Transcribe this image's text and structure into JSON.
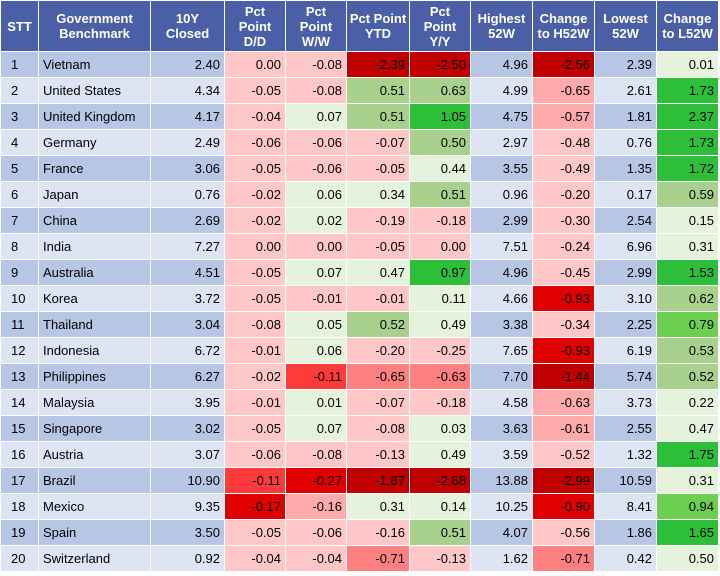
{
  "columns": [
    "STT",
    "Government Benchmark",
    "10Y Closed",
    "Pct Point D/D",
    "Pct Point W/W",
    "Pct Point YTD",
    "Pct Point Y/Y",
    "Highest 52W",
    "Change to H52W",
    "Lowest 52W",
    "Change to L52W"
  ],
  "colors": {
    "header_bg": "#4a5fa5",
    "row_odd": "#b8c6e6",
    "row_even": "#dde4f3",
    "red_1": "#ffc7c7",
    "red_2": "#ffabab",
    "red_3": "#ff8080",
    "red_4": "#ff3a3a",
    "red_5": "#e00000",
    "red_6": "#c00000",
    "green_1": "#e6f3dc",
    "green_2": "#c5e0b4",
    "green_3": "#a9d18e",
    "green_4": "#6ccf4f",
    "green_5": "#2ebf3a"
  },
  "rows": [
    {
      "stt": "1",
      "name": "Vietnam",
      "closed": "2.40",
      "dd": "0.00",
      "ww": "-0.08",
      "ytd": "-2.39",
      "yy": "-2.50",
      "h52": "4.96",
      "ch52": "-2.56",
      "l52": "2.39",
      "cl52": "0.01",
      "c": {
        "dd": "red_1",
        "ww": "red_1",
        "ytd": "red_6",
        "yy": "red_6",
        "ch52": "red_6",
        "cl52": "green_1"
      }
    },
    {
      "stt": "2",
      "name": "United States",
      "closed": "4.34",
      "dd": "-0.05",
      "ww": "-0.08",
      "ytd": "0.51",
      "yy": "0.63",
      "h52": "4.99",
      "ch52": "-0.65",
      "l52": "2.61",
      "cl52": "1.73",
      "c": {
        "dd": "red_1",
        "ww": "red_1",
        "ytd": "green_3",
        "yy": "green_3",
        "ch52": "red_2",
        "cl52": "green_5"
      }
    },
    {
      "stt": "3",
      "name": "United Kingdom",
      "closed": "4.17",
      "dd": "-0.04",
      "ww": "0.07",
      "ytd": "0.51",
      "yy": "1.05",
      "h52": "4.75",
      "ch52": "-0.57",
      "l52": "1.81",
      "cl52": "2.37",
      "c": {
        "dd": "red_1",
        "ww": "green_1",
        "ytd": "green_3",
        "yy": "green_5",
        "ch52": "red_2",
        "cl52": "green_5"
      }
    },
    {
      "stt": "4",
      "name": "Germany",
      "closed": "2.49",
      "dd": "-0.06",
      "ww": "-0.06",
      "ytd": "-0.07",
      "yy": "0.50",
      "h52": "2.97",
      "ch52": "-0.48",
      "l52": "0.76",
      "cl52": "1.73",
      "c": {
        "dd": "red_1",
        "ww": "red_1",
        "ytd": "red_1",
        "yy": "green_3",
        "ch52": "red_1",
        "cl52": "green_5"
      }
    },
    {
      "stt": "5",
      "name": "France",
      "closed": "3.06",
      "dd": "-0.05",
      "ww": "-0.06",
      "ytd": "-0.05",
      "yy": "0.44",
      "h52": "3.55",
      "ch52": "-0.49",
      "l52": "1.35",
      "cl52": "1.72",
      "c": {
        "dd": "red_1",
        "ww": "red_1",
        "ytd": "red_1",
        "yy": "green_1",
        "ch52": "red_1",
        "cl52": "green_5"
      }
    },
    {
      "stt": "6",
      "name": "Japan",
      "closed": "0.76",
      "dd": "-0.02",
      "ww": "0.06",
      "ytd": "0.34",
      "yy": "0.51",
      "h52": "0.96",
      "ch52": "-0.20",
      "l52": "0.17",
      "cl52": "0.59",
      "c": {
        "dd": "red_1",
        "ww": "green_1",
        "ytd": "green_1",
        "yy": "green_3",
        "ch52": "red_1",
        "cl52": "green_3"
      }
    },
    {
      "stt": "7",
      "name": "China",
      "closed": "2.69",
      "dd": "-0.02",
      "ww": "0.02",
      "ytd": "-0.19",
      "yy": "-0.18",
      "h52": "2.99",
      "ch52": "-0.30",
      "l52": "2.54",
      "cl52": "0.15",
      "c": {
        "dd": "red_1",
        "ww": "green_1",
        "ytd": "red_1",
        "yy": "red_1",
        "ch52": "red_1",
        "cl52": "green_1"
      }
    },
    {
      "stt": "8",
      "name": "India",
      "closed": "7.27",
      "dd": "0.00",
      "ww": "0.00",
      "ytd": "-0.05",
      "yy": "0.00",
      "h52": "7.51",
      "ch52": "-0.24",
      "l52": "6.96",
      "cl52": "0.31",
      "c": {
        "dd": "red_1",
        "ww": "red_1",
        "ytd": "red_1",
        "yy": "red_1",
        "ch52": "red_1",
        "cl52": "green_1"
      }
    },
    {
      "stt": "9",
      "name": "Australia",
      "closed": "4.51",
      "dd": "-0.05",
      "ww": "0.07",
      "ytd": "0.47",
      "yy": "0.97",
      "h52": "4.96",
      "ch52": "-0.45",
      "l52": "2.99",
      "cl52": "1.53",
      "c": {
        "dd": "red_1",
        "ww": "green_1",
        "ytd": "green_1",
        "yy": "green_5",
        "ch52": "red_1",
        "cl52": "green_5"
      }
    },
    {
      "stt": "10",
      "name": "Korea",
      "closed": "3.72",
      "dd": "-0.05",
      "ww": "-0.01",
      "ytd": "-0.01",
      "yy": "0.11",
      "h52": "4.66",
      "ch52": "-0.93",
      "l52": "3.10",
      "cl52": "0.62",
      "c": {
        "dd": "red_1",
        "ww": "red_1",
        "ytd": "red_1",
        "yy": "green_1",
        "ch52": "red_5",
        "cl52": "green_3"
      }
    },
    {
      "stt": "11",
      "name": "Thailand",
      "closed": "3.04",
      "dd": "-0.08",
      "ww": "0.05",
      "ytd": "0.52",
      "yy": "0.49",
      "h52": "3.38",
      "ch52": "-0.34",
      "l52": "2.25",
      "cl52": "0.79",
      "c": {
        "dd": "red_1",
        "ww": "green_1",
        "ytd": "green_3",
        "yy": "green_1",
        "ch52": "red_1",
        "cl52": "green_4"
      }
    },
    {
      "stt": "12",
      "name": "Indonesia",
      "closed": "6.72",
      "dd": "-0.01",
      "ww": "0.06",
      "ytd": "-0.20",
      "yy": "-0.25",
      "h52": "7.65",
      "ch52": "-0.93",
      "l52": "6.19",
      "cl52": "0.53",
      "c": {
        "dd": "red_1",
        "ww": "green_1",
        "ytd": "red_1",
        "yy": "red_1",
        "ch52": "red_5",
        "cl52": "green_3"
      }
    },
    {
      "stt": "13",
      "name": "Philippines",
      "closed": "6.27",
      "dd": "-0.02",
      "ww": "-0.11",
      "ytd": "-0.65",
      "yy": "-0.63",
      "h52": "7.70",
      "ch52": "-1.44",
      "l52": "5.74",
      "cl52": "0.52",
      "c": {
        "dd": "red_1",
        "ww": "red_4",
        "ytd": "red_3",
        "yy": "red_3",
        "ch52": "red_6",
        "cl52": "green_3"
      }
    },
    {
      "stt": "14",
      "name": "Malaysia",
      "closed": "3.95",
      "dd": "-0.01",
      "ww": "0.01",
      "ytd": "-0.07",
      "yy": "-0.18",
      "h52": "4.58",
      "ch52": "-0.63",
      "l52": "3.73",
      "cl52": "0.22",
      "c": {
        "dd": "red_1",
        "ww": "green_1",
        "ytd": "red_1",
        "yy": "red_1",
        "ch52": "red_2",
        "cl52": "green_1"
      }
    },
    {
      "stt": "15",
      "name": "Singapore",
      "closed": "3.02",
      "dd": "-0.05",
      "ww": "0.07",
      "ytd": "-0.08",
      "yy": "0.03",
      "h52": "3.63",
      "ch52": "-0.61",
      "l52": "2.55",
      "cl52": "0.47",
      "c": {
        "dd": "red_1",
        "ww": "green_1",
        "ytd": "red_1",
        "yy": "green_1",
        "ch52": "red_2",
        "cl52": "green_1"
      }
    },
    {
      "stt": "16",
      "name": "Austria",
      "closed": "3.07",
      "dd": "-0.06",
      "ww": "-0.08",
      "ytd": "-0.13",
      "yy": "0.49",
      "h52": "3.59",
      "ch52": "-0.52",
      "l52": "1.32",
      "cl52": "1.75",
      "c": {
        "dd": "red_1",
        "ww": "red_1",
        "ytd": "red_1",
        "yy": "green_1",
        "ch52": "red_1",
        "cl52": "green_5"
      }
    },
    {
      "stt": "17",
      "name": "Brazil",
      "closed": "10.90",
      "dd": "-0.11",
      "ww": "-0.27",
      "ytd": "-1.87",
      "yy": "-2.68",
      "h52": "13.88",
      "ch52": "-2.99",
      "l52": "10.59",
      "cl52": "0.31",
      "c": {
        "dd": "red_4",
        "ww": "red_5",
        "ytd": "red_6",
        "yy": "red_6",
        "ch52": "red_6",
        "cl52": "green_1"
      }
    },
    {
      "stt": "18",
      "name": "Mexico",
      "closed": "9.35",
      "dd": "-0.17",
      "ww": "-0.16",
      "ytd": "0.31",
      "yy": "0.14",
      "h52": "10.25",
      "ch52": "-0.90",
      "l52": "8.41",
      "cl52": "0.94",
      "c": {
        "dd": "red_5",
        "ww": "red_2",
        "ytd": "green_1",
        "yy": "green_1",
        "ch52": "red_5",
        "cl52": "green_4"
      }
    },
    {
      "stt": "19",
      "name": "Spain",
      "closed": "3.50",
      "dd": "-0.05",
      "ww": "-0.06",
      "ytd": "-0.16",
      "yy": "0.51",
      "h52": "4.07",
      "ch52": "-0.56",
      "l52": "1.86",
      "cl52": "1.65",
      "c": {
        "dd": "red_1",
        "ww": "red_1",
        "ytd": "red_1",
        "yy": "green_3",
        "ch52": "red_1",
        "cl52": "green_5"
      }
    },
    {
      "stt": "20",
      "name": "Switzerland",
      "closed": "0.92",
      "dd": "-0.04",
      "ww": "-0.04",
      "ytd": "-0.71",
      "yy": "-0.13",
      "h52": "1.62",
      "ch52": "-0.71",
      "l52": "0.42",
      "cl52": "0.50",
      "c": {
        "dd": "red_1",
        "ww": "red_1",
        "ytd": "red_3",
        "yy": "red_1",
        "ch52": "red_3",
        "cl52": "green_1"
      }
    }
  ]
}
